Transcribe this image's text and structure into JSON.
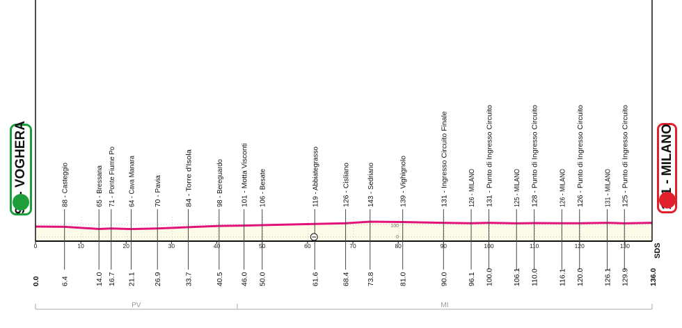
{
  "chart_data": {
    "type": "area",
    "xlabel": "",
    "ylabel": "",
    "xlim": [
      0,
      136
    ],
    "x_ticks": [
      0,
      10,
      20,
      30,
      40,
      50,
      60,
      70,
      80,
      90,
      100,
      110,
      120,
      130
    ],
    "elevation_scale_labels": [
      "100",
      "0"
    ],
    "start": {
      "km": "0.0",
      "label": "91 - VOGHERA",
      "elev": 91
    },
    "finish": {
      "km": "136.0",
      "label": "131 - MILANO",
      "elev": 131
    },
    "waypoints": [
      {
        "km": 6.4,
        "km_label": "6.4",
        "elev": 88,
        "label": "88 - Casteggio"
      },
      {
        "km": 14.0,
        "km_label": "14.0",
        "elev": 65,
        "label": "65 - Bressana"
      },
      {
        "km": 16.7,
        "km_label": "16.7",
        "elev": 71,
        "label": "71 - Ponte Fiume Po"
      },
      {
        "km": 21.1,
        "km_label": "21.1",
        "elev": 64,
        "label": "64 - Cava Manara"
      },
      {
        "km": 26.9,
        "km_label": "26.9",
        "elev": 70,
        "label": "70 - Pavia"
      },
      {
        "km": 33.7,
        "km_label": "33.7",
        "elev": 84,
        "label": "84 - Torre d'Isola"
      },
      {
        "km": 40.5,
        "km_label": "40.5",
        "elev": 98,
        "label": "98 - Bereguardo"
      },
      {
        "km": 46.0,
        "km_label": "46.0",
        "elev": 101,
        "label": "101 - Motta Visconti"
      },
      {
        "km": 50.0,
        "km_label": "50.0",
        "elev": 106,
        "label": "106 - Besate"
      },
      {
        "km": 61.6,
        "km_label": "61.6",
        "elev": 119,
        "label": "119 - Abbiategrasso"
      },
      {
        "km": 68.4,
        "km_label": "68.4",
        "elev": 126,
        "label": "126 - Cisliano"
      },
      {
        "km": 73.8,
        "km_label": "73.8",
        "elev": 143,
        "label": "143 - Sedriano"
      },
      {
        "km": 81.0,
        "km_label": "81.0",
        "elev": 139,
        "label": "139 - Vighignolo"
      },
      {
        "km": 90.0,
        "km_label": "90.0",
        "elev": 131,
        "label": "131 - Ingresso Circuito Finale"
      },
      {
        "km": 96.1,
        "km_label": "96.1",
        "elev": 126,
        "label": "126 - MILANO"
      },
      {
        "km": 100.0,
        "km_label": "100.0",
        "elev": 131,
        "label": "131 - Punto di Ingresso Circuito"
      },
      {
        "km": 106.1,
        "km_label": "106.1",
        "elev": 125,
        "label": "125 - MILANO"
      },
      {
        "km": 110.0,
        "km_label": "110.0",
        "elev": 128,
        "label": "128 - Punto di Ingresso Circuito"
      },
      {
        "km": 116.1,
        "km_label": "116.1",
        "elev": 126,
        "label": "126 - MILANO"
      },
      {
        "km": 120.0,
        "km_label": "120.0",
        "elev": 126,
        "label": "126 - Punto di Ingresso Circuito"
      },
      {
        "km": 126.1,
        "km_label": "126.1",
        "elev": 131,
        "label": "131 - MILANO"
      },
      {
        "km": 129.9,
        "km_label": "129.9",
        "elev": 125,
        "label": "125 - Punto di Ingresso Circuito"
      }
    ],
    "intermediate_sprint_km": 61.6,
    "provinces": [
      {
        "label": "PV",
        "from_km": 0,
        "to_km": 44.5
      },
      {
        "label": "MI",
        "from_km": 44.5,
        "to_km": 136
      }
    ],
    "brand_mark": "SDS",
    "colors": {
      "profile": "#e2127a",
      "fill": "#fbfbe8",
      "start": "#1e9e3a",
      "finish": "#e0202a"
    }
  }
}
